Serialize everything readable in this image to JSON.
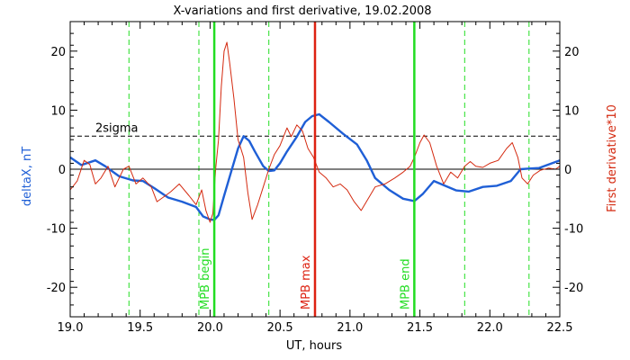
{
  "chart_data": {
    "type": "line",
    "title": "X-variations and first derivative, 19.02.2008",
    "xlabel": "UT, hours",
    "ylabel_left": "deltaX, nT",
    "ylabel_right": "First derivative*10",
    "xlim": [
      19.0,
      22.5
    ],
    "ylim": [
      -25,
      25
    ],
    "x_ticks": [
      19.0,
      19.5,
      20.0,
      20.5,
      21.0,
      21.5,
      22.0,
      22.5
    ],
    "x_tick_labels": [
      "19.0",
      "19.5",
      "20.0",
      "20.5",
      "21.0",
      "21.5",
      "22.0",
      "22.5"
    ],
    "y_ticks": [
      -20,
      -10,
      0,
      10,
      20
    ],
    "y_tick_labels": [
      "-20",
      "-10",
      "0",
      "10",
      "20"
    ],
    "y_tick_labels_right": [
      "-20",
      "-10",
      "0",
      "10",
      "20"
    ],
    "colors": {
      "deltaX": "#1f5fd6",
      "derivative": "#d42a10",
      "mpb_boundary": "#22dd22",
      "mpb_max": "#dd2211",
      "axes": "#000000"
    },
    "hlines": [
      {
        "y": 0,
        "style": "solid",
        "color": "#000000"
      },
      {
        "y": 5.6,
        "style": "dashed",
        "color": "#000000",
        "label": "2sigma",
        "label_x": 19.18
      }
    ],
    "vlines_dashed": [
      19.42,
      19.92,
      20.42,
      21.82,
      22.28
    ],
    "vlines_solid": [
      {
        "x": 20.03,
        "color": "#22dd22",
        "label": "MPB begin"
      },
      {
        "x": 20.75,
        "color": "#dd2211",
        "label": "MPB max"
      },
      {
        "x": 21.46,
        "color": "#22dd22",
        "label": "MPB end"
      }
    ],
    "series": [
      {
        "key": "deltaX",
        "color": "#1f5fd6",
        "points": [
          [
            19.0,
            2.0
          ],
          [
            19.08,
            0.7
          ],
          [
            19.18,
            1.5
          ],
          [
            19.25,
            0.5
          ],
          [
            19.35,
            -1.2
          ],
          [
            19.45,
            -1.9
          ],
          [
            19.52,
            -2.0
          ],
          [
            19.6,
            -3.2
          ],
          [
            19.7,
            -4.8
          ],
          [
            19.8,
            -5.5
          ],
          [
            19.9,
            -6.4
          ],
          [
            19.95,
            -8.0
          ],
          [
            20.0,
            -8.5
          ],
          [
            20.03,
            -8.6
          ],
          [
            20.06,
            -7.8
          ],
          [
            20.1,
            -4.5
          ],
          [
            20.15,
            -0.5
          ],
          [
            20.2,
            3.5
          ],
          [
            20.24,
            5.6
          ],
          [
            20.28,
            4.8
          ],
          [
            20.32,
            3.0
          ],
          [
            20.38,
            0.5
          ],
          [
            20.42,
            -0.3
          ],
          [
            20.46,
            -0.2
          ],
          [
            20.5,
            1.0
          ],
          [
            20.55,
            3.0
          ],
          [
            20.62,
            5.5
          ],
          [
            20.68,
            8.0
          ],
          [
            20.73,
            9.0
          ],
          [
            20.78,
            9.3
          ],
          [
            20.85,
            8.0
          ],
          [
            20.95,
            6.0
          ],
          [
            21.05,
            4.2
          ],
          [
            21.12,
            1.5
          ],
          [
            21.18,
            -1.5
          ],
          [
            21.28,
            -3.5
          ],
          [
            21.38,
            -5.0
          ],
          [
            21.46,
            -5.4
          ],
          [
            21.52,
            -4.2
          ],
          [
            21.6,
            -2.0
          ],
          [
            21.68,
            -2.8
          ],
          [
            21.76,
            -3.6
          ],
          [
            21.85,
            -3.8
          ],
          [
            21.95,
            -3.0
          ],
          [
            22.05,
            -2.8
          ],
          [
            22.15,
            -2.0
          ],
          [
            22.22,
            0.0
          ],
          [
            22.28,
            0.1
          ],
          [
            22.35,
            0.2
          ],
          [
            22.42,
            0.8
          ],
          [
            22.5,
            1.5
          ]
        ]
      },
      {
        "key": "derivative",
        "color": "#d42a10",
        "points": [
          [
            19.0,
            -3.5
          ],
          [
            19.05,
            -2.0
          ],
          [
            19.1,
            1.5
          ],
          [
            19.14,
            0.8
          ],
          [
            19.18,
            -2.5
          ],
          [
            19.22,
            -1.5
          ],
          [
            19.27,
            0.5
          ],
          [
            19.32,
            -3.0
          ],
          [
            19.38,
            0.0
          ],
          [
            19.42,
            0.5
          ],
          [
            19.47,
            -2.5
          ],
          [
            19.52,
            -1.5
          ],
          [
            19.58,
            -3.0
          ],
          [
            19.62,
            -5.5
          ],
          [
            19.68,
            -4.5
          ],
          [
            19.72,
            -3.8
          ],
          [
            19.78,
            -2.5
          ],
          [
            19.85,
            -4.5
          ],
          [
            19.9,
            -6.0
          ],
          [
            19.94,
            -3.5
          ],
          [
            19.97,
            -7.0
          ],
          [
            20.0,
            -9.0
          ],
          [
            20.02,
            -7.5
          ],
          [
            20.04,
            0.0
          ],
          [
            20.06,
            5.0
          ],
          [
            20.08,
            14.0
          ],
          [
            20.1,
            20.0
          ],
          [
            20.12,
            21.5
          ],
          [
            20.14,
            18.0
          ],
          [
            20.17,
            12.0
          ],
          [
            20.2,
            5.0
          ],
          [
            20.24,
            2.0
          ],
          [
            20.27,
            -4.0
          ],
          [
            20.3,
            -8.5
          ],
          [
            20.34,
            -6.0
          ],
          [
            20.38,
            -3.0
          ],
          [
            20.42,
            0.0
          ],
          [
            20.46,
            2.5
          ],
          [
            20.5,
            4.0
          ],
          [
            20.55,
            7.0
          ],
          [
            20.58,
            5.5
          ],
          [
            20.62,
            7.5
          ],
          [
            20.66,
            6.5
          ],
          [
            20.7,
            3.5
          ],
          [
            20.74,
            2.0
          ],
          [
            20.78,
            -0.5
          ],
          [
            20.83,
            -1.5
          ],
          [
            20.88,
            -3.0
          ],
          [
            20.93,
            -2.5
          ],
          [
            20.98,
            -3.5
          ],
          [
            21.03,
            -5.5
          ],
          [
            21.08,
            -7.0
          ],
          [
            21.13,
            -5.0
          ],
          [
            21.18,
            -3.0
          ],
          [
            21.25,
            -2.5
          ],
          [
            21.32,
            -1.5
          ],
          [
            21.38,
            -0.5
          ],
          [
            21.43,
            0.5
          ],
          [
            21.46,
            2.0
          ],
          [
            21.5,
            4.5
          ],
          [
            21.53,
            5.8
          ],
          [
            21.57,
            4.5
          ],
          [
            21.62,
            0.5
          ],
          [
            21.67,
            -2.5
          ],
          [
            21.72,
            -0.5
          ],
          [
            21.77,
            -1.5
          ],
          [
            21.82,
            0.5
          ],
          [
            21.86,
            1.3
          ],
          [
            21.9,
            0.5
          ],
          [
            21.95,
            0.3
          ],
          [
            22.0,
            1.0
          ],
          [
            22.06,
            1.5
          ],
          [
            22.12,
            3.5
          ],
          [
            22.16,
            4.5
          ],
          [
            22.2,
            2.0
          ],
          [
            22.23,
            -1.5
          ],
          [
            22.27,
            -2.5
          ],
          [
            22.31,
            -1.0
          ],
          [
            22.36,
            -0.2
          ],
          [
            22.42,
            0.2
          ],
          [
            22.47,
            0.0
          ],
          [
            22.5,
            0.5
          ]
        ]
      }
    ]
  }
}
